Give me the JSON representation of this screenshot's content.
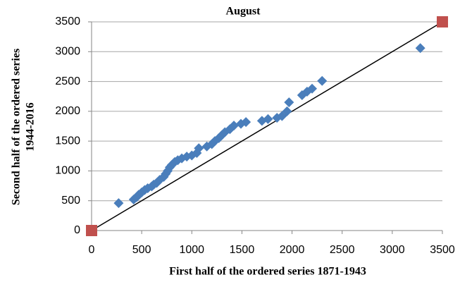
{
  "chart_data": {
    "type": "scatter",
    "title": "August",
    "xlabel": "First half of the ordered series 1871-1943",
    "ylabel": [
      "Second half of the ordered series",
      "1944-2016"
    ],
    "xlim": [
      0,
      3500
    ],
    "ylim": [
      0,
      3500
    ],
    "xticks": [
      0,
      500,
      1000,
      1500,
      2000,
      2500,
      3000,
      3500
    ],
    "yticks": [
      0,
      500,
      1000,
      1500,
      2000,
      2500,
      3000,
      3500
    ],
    "grid": "y",
    "series": [
      {
        "color": "#4a7ebb",
        "marker": "diamond",
        "x": [
          270,
          420,
          450,
          470,
          500,
          530,
          560,
          600,
          620,
          650,
          680,
          720,
          740,
          760,
          780,
          800,
          830,
          860,
          900,
          950,
          1000,
          1050,
          1070,
          1150,
          1200,
          1230,
          1270,
          1300,
          1330,
          1380,
          1420,
          1490,
          1540,
          1700,
          1760,
          1850,
          1900,
          1950,
          1970,
          2100,
          2150,
          2200,
          2300,
          3280
        ],
        "values": [
          460,
          520,
          560,
          600,
          640,
          680,
          710,
          740,
          770,
          800,
          850,
          900,
          950,
          1000,
          1060,
          1100,
          1150,
          1180,
          1210,
          1240,
          1260,
          1300,
          1380,
          1410,
          1450,
          1500,
          1550,
          1600,
          1650,
          1700,
          1760,
          1790,
          1820,
          1840,
          1870,
          1890,
          1920,
          2000,
          2150,
          2270,
          2330,
          2380,
          2510,
          3060
        ]
      },
      {
        "color": "#c0504d",
        "marker": "square",
        "x": [
          0,
          3500
        ],
        "values": [
          0,
          3500
        ]
      }
    ],
    "reference_line": {
      "color": "#000000",
      "x": [
        0,
        3500
      ],
      "values": [
        0,
        3500
      ]
    }
  }
}
